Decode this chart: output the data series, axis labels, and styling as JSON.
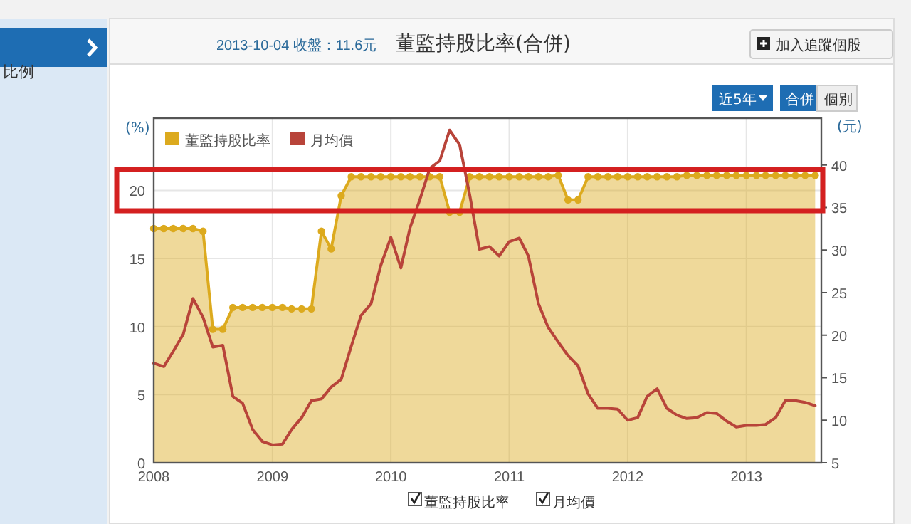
{
  "chart_data": {
    "type": "area",
    "title": "董監持股比率(合併)",
    "subtitle": "2013-10-04 收盤：11.6元",
    "annotations": [
      "比例",
      "加入追蹤個股",
      "近5年",
      "合併",
      "個別"
    ],
    "ylabel": "(%)",
    "y2label": "(元)",
    "x": [
      "2008-01",
      "2008-02",
      "2008-03",
      "2008-04",
      "2008-05",
      "2008-06",
      "2008-07",
      "2008-08",
      "2008-09",
      "2008-10",
      "2008-11",
      "2008-12",
      "2009-01",
      "2009-02",
      "2009-03",
      "2009-04",
      "2009-05",
      "2009-06",
      "2009-07",
      "2009-08",
      "2009-09",
      "2009-10",
      "2009-11",
      "2009-12",
      "2010-01",
      "2010-02",
      "2010-03",
      "2010-04",
      "2010-05",
      "2010-06",
      "2010-07",
      "2010-08",
      "2010-09",
      "2010-10",
      "2010-11",
      "2010-12",
      "2011-01",
      "2011-02",
      "2011-03",
      "2011-04",
      "2011-05",
      "2011-06",
      "2011-07",
      "2011-08",
      "2011-09",
      "2011-10",
      "2011-11",
      "2011-12",
      "2012-01",
      "2012-02",
      "2012-03",
      "2012-04",
      "2012-05",
      "2012-06",
      "2012-07",
      "2012-08",
      "2012-09",
      "2012-10",
      "2012-11",
      "2012-12",
      "2013-01",
      "2013-02",
      "2013-03",
      "2013-04",
      "2013-05",
      "2013-06",
      "2013-07",
      "2013-08"
    ],
    "series": [
      {
        "name": "董監持股比率",
        "color": "#dcaa1e",
        "marker": "circle",
        "values": [
          17.2,
          17.2,
          17.2,
          17.2,
          17.2,
          17.0,
          9.8,
          9.8,
          11.4,
          11.4,
          11.4,
          11.4,
          11.4,
          11.4,
          11.3,
          11.3,
          11.3,
          17.0,
          15.7,
          19.6,
          21.0,
          21.0,
          21.0,
          21.0,
          21.0,
          21.0,
          21.0,
          21.0,
          21.0,
          21.0,
          18.4,
          18.4,
          21.0,
          21.0,
          21.0,
          21.0,
          21.0,
          21.0,
          21.0,
          21.0,
          21.0,
          21.1,
          19.3,
          19.3,
          21.0,
          21.0,
          21.0,
          21.0,
          21.0,
          21.0,
          21.0,
          21.0,
          21.0,
          21.0,
          21.1,
          21.1,
          21.1,
          21.1,
          21.1,
          21.1,
          21.1,
          21.1,
          21.1,
          21.1,
          21.1,
          21.1,
          21.1,
          21.1
        ]
      },
      {
        "name": "月均價",
        "type": "line",
        "axis": "y2",
        "color": "#b8443a",
        "marker": "none",
        "values": [
          16.7,
          16.3,
          18.1,
          20.1,
          24.3,
          22.1,
          18.6,
          18.8,
          12.8,
          12.0,
          8.9,
          7.5,
          7.1,
          7.2,
          8.9,
          10.3,
          12.3,
          12.5,
          13.9,
          14.8,
          18.7,
          22.3,
          23.7,
          28.2,
          31.5,
          27.9,
          32.6,
          36.0,
          39.6,
          40.5,
          44.1,
          42.4,
          36.5,
          30.1,
          30.4,
          29.3,
          31.0,
          31.4,
          29.3,
          23.7,
          20.9,
          19.2,
          17.6,
          16.4,
          13.1,
          11.4,
          11.4,
          11.3,
          10.0,
          10.3,
          12.8,
          13.7,
          11.4,
          10.6,
          10.2,
          10.3,
          10.9,
          10.8,
          9.9,
          9.2,
          9.4,
          9.4,
          9.5,
          10.3,
          12.3,
          12.3,
          12.1,
          11.7
        ]
      }
    ],
    "xlim": [
      "2008-01-01",
      "2013-08-20"
    ],
    "xticks": [
      {
        "value": "2008-01-01",
        "label": "2008"
      },
      {
        "value": "2009-01-01",
        "label": "2009"
      },
      {
        "value": "2010-01-01",
        "label": "2010"
      },
      {
        "value": "2011-01-01",
        "label": "2011"
      },
      {
        "value": "2012-01-01",
        "label": "2012"
      },
      {
        "value": "2013-01-01",
        "label": "2013"
      }
    ],
    "ylim": [
      0,
      25.3
    ],
    "yticks": [
      0,
      5,
      10,
      15,
      20
    ],
    "y2lim": [
      5,
      45.5
    ],
    "y2ticks": [
      5,
      10,
      15,
      20,
      25,
      30,
      35,
      40
    ],
    "grid": true,
    "legend": "top left"
  }
}
